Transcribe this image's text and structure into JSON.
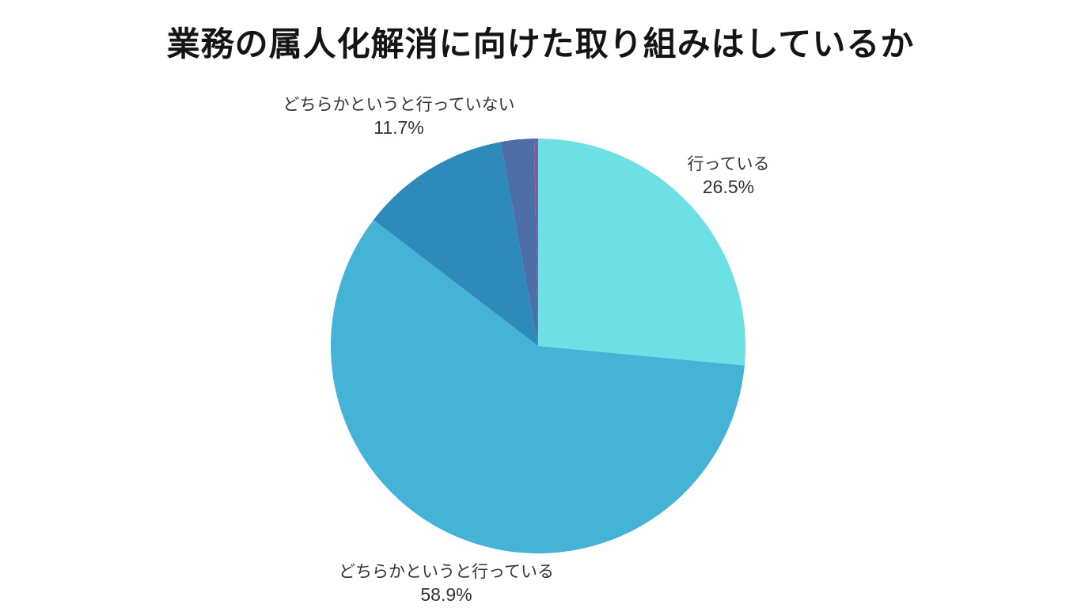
{
  "title": "業務の属人化解消に向けた取り組みはしているか",
  "chart_data": {
    "type": "pie",
    "title": "業務の属人化解消に向けた取り組みはしているか",
    "start_angle_deg": 0,
    "direction": "clockwise",
    "legend": "none",
    "background_color": "#ffffff",
    "text_color": "#333333",
    "slices": [
      {
        "label": "行っている",
        "value": 26.5,
        "percent_text": "26.5%",
        "color": "#6ce0e5"
      },
      {
        "label": "どちらかというと行っている",
        "value": 58.9,
        "percent_text": "58.9%",
        "color": "#44b3d6"
      },
      {
        "label": "どちらかというと行っていない",
        "value": 11.7,
        "percent_text": "11.7%",
        "color": "#2e8abb"
      },
      {
        "label": "",
        "value": 2.6,
        "percent_text": "",
        "color": "#4c6da6"
      },
      {
        "label": "",
        "value": 0.3,
        "percent_text": "",
        "color": "#7e59a2"
      }
    ]
  }
}
